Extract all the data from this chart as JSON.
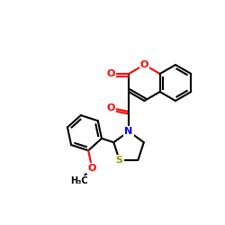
{
  "bg_color": "#ffffff",
  "bond_color": "#000000",
  "bond_lw": 1.5,
  "atom_colors": {
    "O": "#ff0000",
    "N": "#0000ff",
    "S": "#999900"
  },
  "font_size": 7,
  "fig_size": [
    2.5,
    2.5
  ],
  "dpi": 100
}
